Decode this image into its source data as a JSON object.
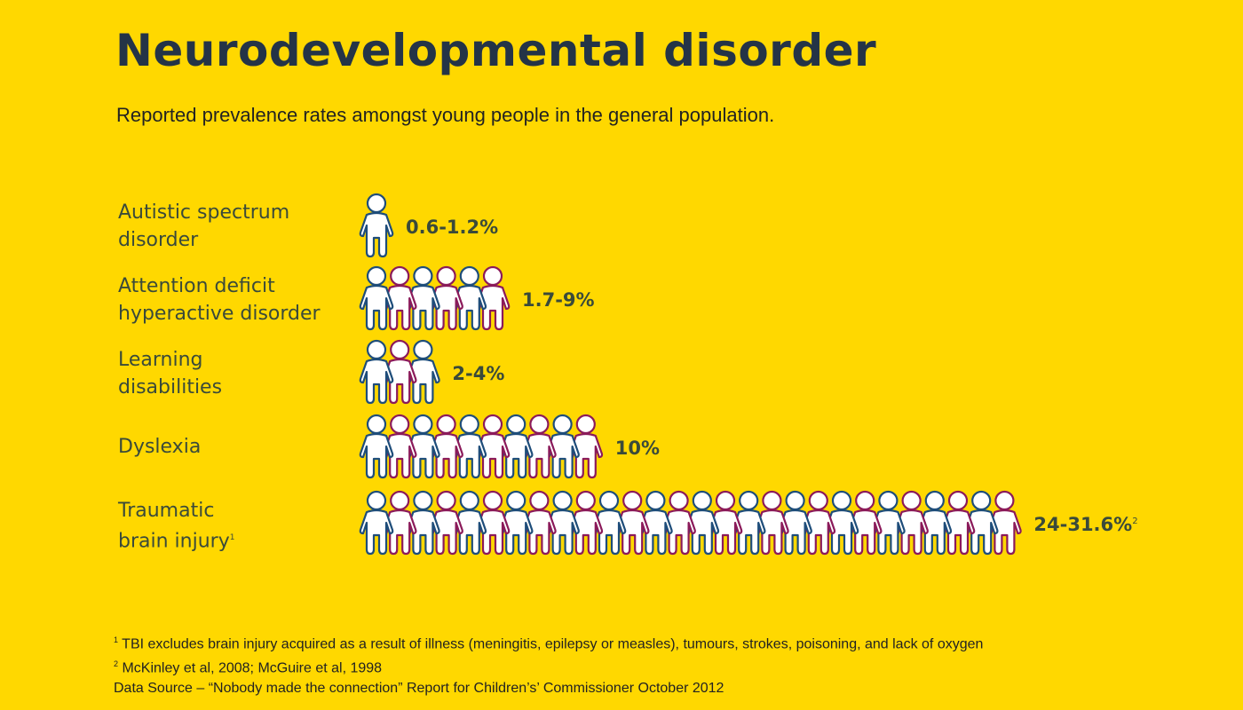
{
  "header": {
    "title": "Neurodevelopmental disorder",
    "subtitle": "Reported prevalence rates amongst young people in the general population."
  },
  "colors": {
    "background": "#FFD800",
    "figure_fill": "#FFFFFF",
    "outline_primary": "#1E4D7A",
    "outline_alternate": "#8B1A5A",
    "text": "#3a4a3a"
  },
  "chart_data": {
    "type": "pictogram",
    "icon": "person-icon",
    "unit": "1 figure ≈ 1%",
    "rows": [
      {
        "label": "Autistic spectrum\ndisorder",
        "label_sup": "",
        "value_text": "0.6-1.2%",
        "value_sup": "",
        "figures": 1
      },
      {
        "label": "Attention deficit\nhyperactive disorder",
        "label_sup": "",
        "value_text": "1.7-9%",
        "value_sup": "",
        "figures": 6
      },
      {
        "label": "Learning\ndisabilities",
        "label_sup": "",
        "value_text": "2-4%",
        "value_sup": "",
        "figures": 3
      },
      {
        "label": "Dyslexia",
        "label_sup": "",
        "value_text": "10%",
        "value_sup": "",
        "figures": 10
      },
      {
        "label": "Traumatic\nbrain injury",
        "label_sup": "1",
        "value_text": "24-31.6%",
        "value_sup": "2",
        "figures": 28
      }
    ]
  },
  "footnotes": {
    "note1_marker": "1",
    "note1": "TBI excludes brain injury acquired as a result of illness (meningitis, epilepsy or measles), tumours, strokes, poisoning, and lack of oxygen",
    "note2_marker": "2",
    "note2": "McKinley et al, 2008; McGuire et al, 1998",
    "source": "Data Source – “Nobody made the connection” Report for Children’s’ Commissioner October 2012"
  }
}
